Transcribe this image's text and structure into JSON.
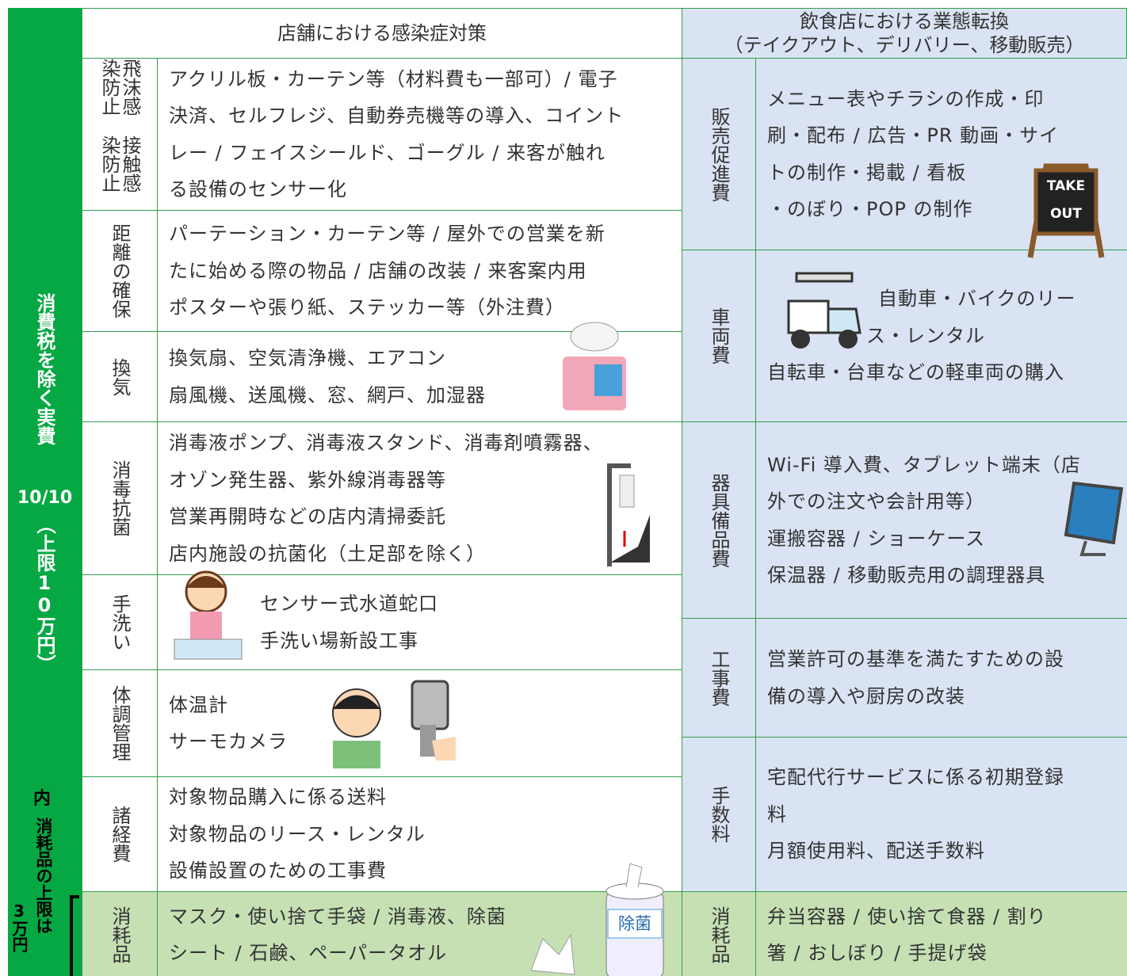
{
  "sidebar": {
    "main": "消費税を除く実費",
    "rate": "10/10",
    "limit": "（上限10万円）",
    "note_prefix": "内",
    "note_main": "消耗品の上限は",
    "note_amount": "3万円"
  },
  "left": {
    "header": "店舗における感染症対策",
    "rows": [
      {
        "category": [
          "飛沫感染防止",
          "接触感染防止"
        ],
        "lines": [
          "アクリル板・カーテン等（材料費も一部可）/ 電子",
          "決済、セルフレジ、自動券売機等の導入、コイント",
          "レー / フェイスシールド、ゴーグル / 来客が触れ",
          "る設備のセンサー化"
        ]
      },
      {
        "category": [
          "距離の確保"
        ],
        "lines": [
          "パーテーション・カーテン等 / 屋外での営業を新",
          "たに始める際の物品 / 店舗の改装 / 来客案内用",
          "ポスターや張り紙、ステッカー等（外注費）"
        ]
      },
      {
        "category": [
          "換気"
        ],
        "lines": [
          "換気扇、空気清浄機、エアコン",
          "扇風機、送風機、窓、網戸、加湿器"
        ]
      },
      {
        "category": [
          "消毒抗菌"
        ],
        "lines": [
          "消毒液ポンプ、消毒液スタンド、消毒剤噴霧器、",
          "オゾン発生器、紫外線消毒器等",
          "営業再開時などの店内清掃委託",
          "店内施設の抗菌化（土足部を除く）"
        ]
      },
      {
        "category": [
          "手洗い"
        ],
        "lines": [
          "センサー式水道蛇口",
          "手洗い場新設工事"
        ]
      },
      {
        "category": [
          "体調管理"
        ],
        "lines": [
          "体温計",
          "サーモカメラ"
        ]
      },
      {
        "category": [
          "諸経費"
        ],
        "lines": [
          "対象物品購入に係る送料",
          "対象物品のリース・レンタル",
          "設備設置のための工事費"
        ]
      },
      {
        "category": [
          "消耗品"
        ],
        "lines": [
          "マスク・使い捨て手袋 / 消毒液、除菌",
          "シート / 石鹸、ペーパータオル"
        ]
      }
    ]
  },
  "right": {
    "header": [
      "飲食店における業態転換",
      "（テイクアウト、デリバリー、移動販売）"
    ],
    "rows": [
      {
        "category": [
          "販売促進費"
        ],
        "lines": [
          "メニュー表やチラシの作成・印",
          "刷・配布 / 広告・PR 動画・サイ",
          "トの制作・掲載 / 看板",
          "・のぼり・POP の制作"
        ]
      },
      {
        "category": [
          "車両費"
        ],
        "lines": [
          "自動車・バイクのリー",
          "ス・レンタル",
          "自転車・台車などの軽車両の購入"
        ]
      },
      {
        "category": [
          "器具備品費"
        ],
        "lines": [
          "Wi-Fi 導入費、タブレット端末（店",
          "外での注文や会計用等）",
          "運搬容器 / ショーケース",
          "保温器 / 移動販売用の調理器具"
        ]
      },
      {
        "category": [
          "工事費"
        ],
        "lines": [
          "営業許可の基準を満たすための設",
          "備の導入や厨房の改装"
        ]
      },
      {
        "category": [
          "手数料"
        ],
        "lines": [
          "宅配代行サービスに係る初期登録",
          "料",
          "月額使用料、配送手数料"
        ]
      },
      {
        "category": [
          "消耗品"
        ],
        "lines": [
          "弁当容器 / 使い捨て食器 / 割り",
          "箸 / おしぼり / 手提げ袋"
        ]
      }
    ]
  },
  "images": {
    "sign": [
      "TAKE",
      "OUT"
    ],
    "wipes": "除菌"
  }
}
